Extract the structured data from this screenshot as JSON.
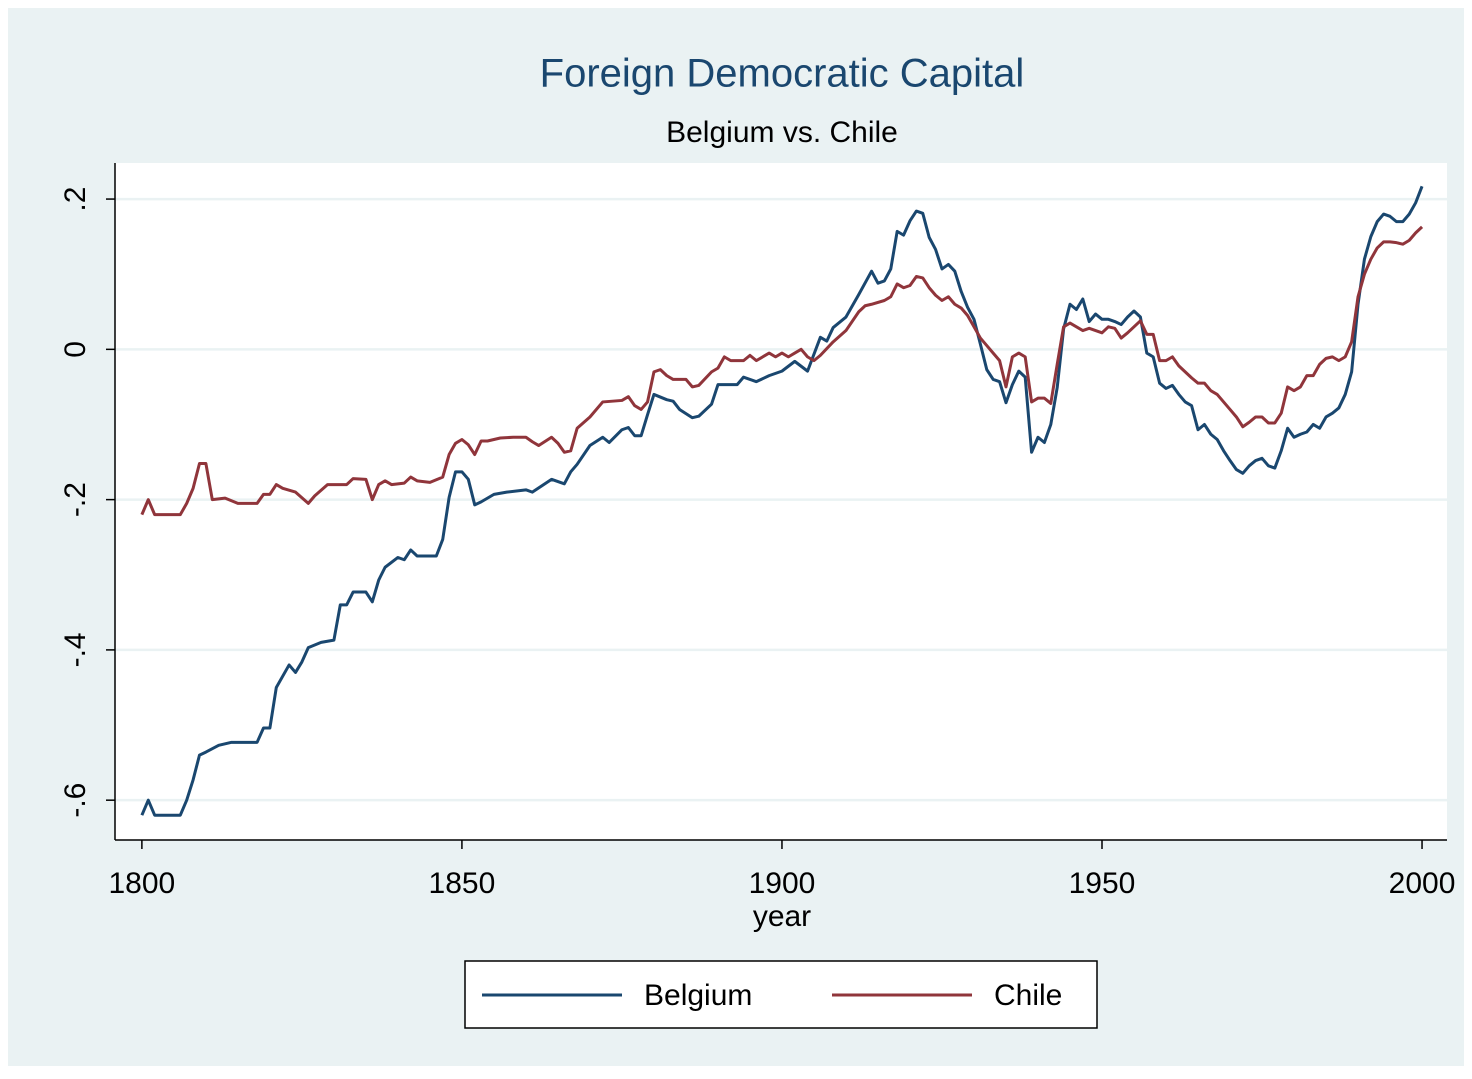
{
  "chart_data": {
    "type": "line",
    "title": "Foreign Democratic Capital",
    "subtitle": "Belgium vs. Chile",
    "x_label": "year",
    "xlim": [
      1795.8,
      2003.9
    ],
    "ylim": [
      -0.653,
      0.248
    ],
    "xticks": [
      1800,
      1850,
      1900,
      1950,
      2000
    ],
    "yticks": [
      {
        "value": -0.6,
        "label": "-.6"
      },
      {
        "value": -0.4,
        "label": "-.4"
      },
      {
        "value": -0.2,
        "label": "-.2"
      },
      0,
      {
        "value": 0.2,
        "label": ".2"
      }
    ],
    "grid": true,
    "legend": "bottom",
    "series": [
      {
        "name": "Belgium",
        "color": "#1a476f",
        "x": [
          1800,
          1801,
          1802,
          1806,
          1807,
          1808,
          1809,
          1810,
          1812,
          1814,
          1818,
          1819,
          1820,
          1821,
          1823,
          1824,
          1825,
          1826,
          1828,
          1830,
          1831,
          1832,
          1833,
          1835,
          1836,
          1837,
          1838,
          1840,
          1841,
          1842,
          1843,
          1846,
          1847,
          1848,
          1849,
          1850,
          1851,
          1852,
          1853,
          1855,
          1857,
          1860,
          1861,
          1864,
          1866,
          1867,
          1868,
          1870,
          1872,
          1873,
          1875,
          1876,
          1877,
          1878,
          1879,
          1880,
          1882,
          1883,
          1884,
          1886,
          1887,
          1889,
          1890,
          1893,
          1894,
          1896,
          1898,
          1900,
          1902,
          1904,
          1906,
          1907,
          1908,
          1910,
          1912,
          1914,
          1915,
          1916,
          1917,
          1918,
          1919,
          1920,
          1921,
          1922,
          1923,
          1924,
          1925,
          1926,
          1927,
          1928,
          1929,
          1930,
          1931,
          1932,
          1933,
          1934,
          1935,
          1936,
          1937,
          1938,
          1939,
          1940,
          1941,
          1942,
          1943,
          1944,
          1945,
          1946,
          1947,
          1948,
          1949,
          1950,
          1951,
          1952,
          1953,
          1954,
          1955,
          1956,
          1957,
          1958,
          1959,
          1960,
          1961,
          1962,
          1963,
          1964,
          1965,
          1966,
          1967,
          1968,
          1969,
          1970,
          1971,
          1972,
          1973,
          1974,
          1975,
          1976,
          1977,
          1978,
          1979,
          1980,
          1981,
          1982,
          1983,
          1984,
          1985,
          1986,
          1987,
          1988,
          1989,
          1990,
          1991,
          1992,
          1993,
          1994,
          1995,
          1996,
          1997,
          1998,
          1999,
          2000
        ],
        "values": [
          -0.62,
          -0.6,
          -0.62,
          -0.62,
          -0.6,
          -0.573,
          -0.54,
          -0.536,
          -0.527,
          -0.523,
          -0.523,
          -0.504,
          -0.504,
          -0.45,
          -0.42,
          -0.43,
          -0.416,
          -0.397,
          -0.39,
          -0.387,
          -0.34,
          -0.34,
          -0.323,
          -0.323,
          -0.336,
          -0.307,
          -0.29,
          -0.277,
          -0.28,
          -0.267,
          -0.275,
          -0.275,
          -0.253,
          -0.197,
          -0.163,
          -0.163,
          -0.173,
          -0.207,
          -0.203,
          -0.193,
          -0.19,
          -0.187,
          -0.19,
          -0.173,
          -0.179,
          -0.163,
          -0.153,
          -0.128,
          -0.117,
          -0.124,
          -0.107,
          -0.104,
          -0.115,
          -0.115,
          -0.087,
          -0.06,
          -0.067,
          -0.069,
          -0.08,
          -0.091,
          -0.089,
          -0.073,
          -0.047,
          -0.047,
          -0.037,
          -0.043,
          -0.035,
          -0.029,
          -0.016,
          -0.029,
          0.016,
          0.011,
          0.029,
          0.043,
          0.073,
          0.104,
          0.088,
          0.091,
          0.107,
          0.157,
          0.152,
          0.171,
          0.184,
          0.181,
          0.149,
          0.133,
          0.107,
          0.113,
          0.104,
          0.077,
          0.056,
          0.04,
          0.007,
          -0.027,
          -0.04,
          -0.043,
          -0.071,
          -0.047,
          -0.029,
          -0.037,
          -0.137,
          -0.117,
          -0.124,
          -0.1,
          -0.051,
          0.027,
          0.06,
          0.053,
          0.067,
          0.037,
          0.047,
          0.04,
          0.04,
          0.037,
          0.033,
          0.043,
          0.051,
          0.043,
          -0.005,
          -0.01,
          -0.045,
          -0.052,
          -0.048,
          -0.06,
          -0.07,
          -0.075,
          -0.107,
          -0.1,
          -0.113,
          -0.12,
          -0.135,
          -0.148,
          -0.16,
          -0.165,
          -0.155,
          -0.148,
          -0.145,
          -0.155,
          -0.158,
          -0.135,
          -0.105,
          -0.117,
          -0.113,
          -0.11,
          -0.1,
          -0.105,
          -0.09,
          -0.085,
          -0.078,
          -0.06,
          -0.03,
          0.06,
          0.12,
          0.15,
          0.17,
          0.18,
          0.177,
          0.17,
          0.17,
          0.18,
          0.195,
          0.217
        ]
      },
      {
        "name": "Chile",
        "color": "#90353b",
        "x": [
          1800,
          1801,
          1802,
          1806,
          1807,
          1808,
          1809,
          1810,
          1811,
          1813,
          1815,
          1818,
          1819,
          1820,
          1821,
          1822,
          1824,
          1826,
          1827,
          1829,
          1832,
          1833,
          1835,
          1836,
          1837,
          1838,
          1839,
          1841,
          1842,
          1843,
          1845,
          1847,
          1848,
          1849,
          1850,
          1851,
          1852,
          1853,
          1854,
          1856,
          1858,
          1860,
          1861,
          1862,
          1864,
          1865,
          1866,
          1867,
          1868,
          1870,
          1872,
          1875,
          1876,
          1877,
          1878,
          1879,
          1880,
          1881,
          1882,
          1883,
          1885,
          1886,
          1887,
          1889,
          1890,
          1891,
          1892,
          1894,
          1895,
          1896,
          1898,
          1899,
          1900,
          1901,
          1902,
          1903,
          1904,
          1905,
          1906,
          1908,
          1910,
          1912,
          1913,
          1914,
          1916,
          1917,
          1918,
          1919,
          1920,
          1921,
          1922,
          1923,
          1924,
          1925,
          1926,
          1927,
          1928,
          1929,
          1930,
          1931,
          1932,
          1933,
          1934,
          1935,
          1936,
          1937,
          1938,
          1939,
          1940,
          1941,
          1942,
          1943,
          1944,
          1945,
          1946,
          1947,
          1948,
          1949,
          1950,
          1951,
          1952,
          1953,
          1954,
          1955,
          1956,
          1957,
          1958,
          1959,
          1960,
          1961,
          1962,
          1963,
          1964,
          1965,
          1966,
          1967,
          1968,
          1969,
          1970,
          1971,
          1972,
          1973,
          1974,
          1975,
          1976,
          1977,
          1978,
          1979,
          1980,
          1981,
          1982,
          1983,
          1984,
          1985,
          1986,
          1987,
          1988,
          1989,
          1990,
          1991,
          1992,
          1993,
          1994,
          1995,
          1996,
          1997,
          1998,
          1999,
          2000
        ],
        "values": [
          -0.22,
          -0.2,
          -0.22,
          -0.22,
          -0.205,
          -0.185,
          -0.152,
          -0.152,
          -0.2,
          -0.198,
          -0.205,
          -0.205,
          -0.193,
          -0.193,
          -0.18,
          -0.185,
          -0.19,
          -0.205,
          -0.195,
          -0.18,
          -0.18,
          -0.172,
          -0.173,
          -0.2,
          -0.18,
          -0.175,
          -0.18,
          -0.178,
          -0.17,
          -0.175,
          -0.177,
          -0.17,
          -0.14,
          -0.125,
          -0.12,
          -0.127,
          -0.14,
          -0.122,
          -0.122,
          -0.118,
          -0.117,
          -0.117,
          -0.123,
          -0.128,
          -0.117,
          -0.125,
          -0.137,
          -0.135,
          -0.105,
          -0.09,
          -0.07,
          -0.068,
          -0.063,
          -0.075,
          -0.08,
          -0.07,
          -0.03,
          -0.027,
          -0.035,
          -0.04,
          -0.04,
          -0.05,
          -0.048,
          -0.03,
          -0.025,
          -0.01,
          -0.015,
          -0.015,
          -0.008,
          -0.015,
          -0.005,
          -0.01,
          -0.005,
          -0.01,
          -0.005,
          0.0,
          -0.01,
          -0.015,
          -0.008,
          0.01,
          0.025,
          0.05,
          0.058,
          0.06,
          0.065,
          0.07,
          0.087,
          0.082,
          0.085,
          0.097,
          0.095,
          0.082,
          0.072,
          0.065,
          0.07,
          0.06,
          0.055,
          0.045,
          0.03,
          0.015,
          0.005,
          -0.005,
          -0.015,
          -0.05,
          -0.01,
          -0.005,
          -0.01,
          -0.07,
          -0.065,
          -0.065,
          -0.072,
          -0.02,
          0.03,
          0.035,
          0.03,
          0.025,
          0.028,
          0.025,
          0.022,
          0.03,
          0.028,
          0.015,
          0.022,
          0.03,
          0.038,
          0.02,
          0.02,
          -0.015,
          -0.015,
          -0.01,
          -0.022,
          -0.03,
          -0.038,
          -0.045,
          -0.045,
          -0.055,
          -0.06,
          -0.07,
          -0.08,
          -0.09,
          -0.103,
          -0.097,
          -0.09,
          -0.09,
          -0.098,
          -0.098,
          -0.085,
          -0.05,
          -0.055,
          -0.05,
          -0.035,
          -0.035,
          -0.02,
          -0.012,
          -0.01,
          -0.015,
          -0.01,
          0.01,
          0.07,
          0.1,
          0.12,
          0.135,
          0.143,
          0.143,
          0.142,
          0.14,
          0.145,
          0.155,
          0.163
        ]
      }
    ]
  }
}
